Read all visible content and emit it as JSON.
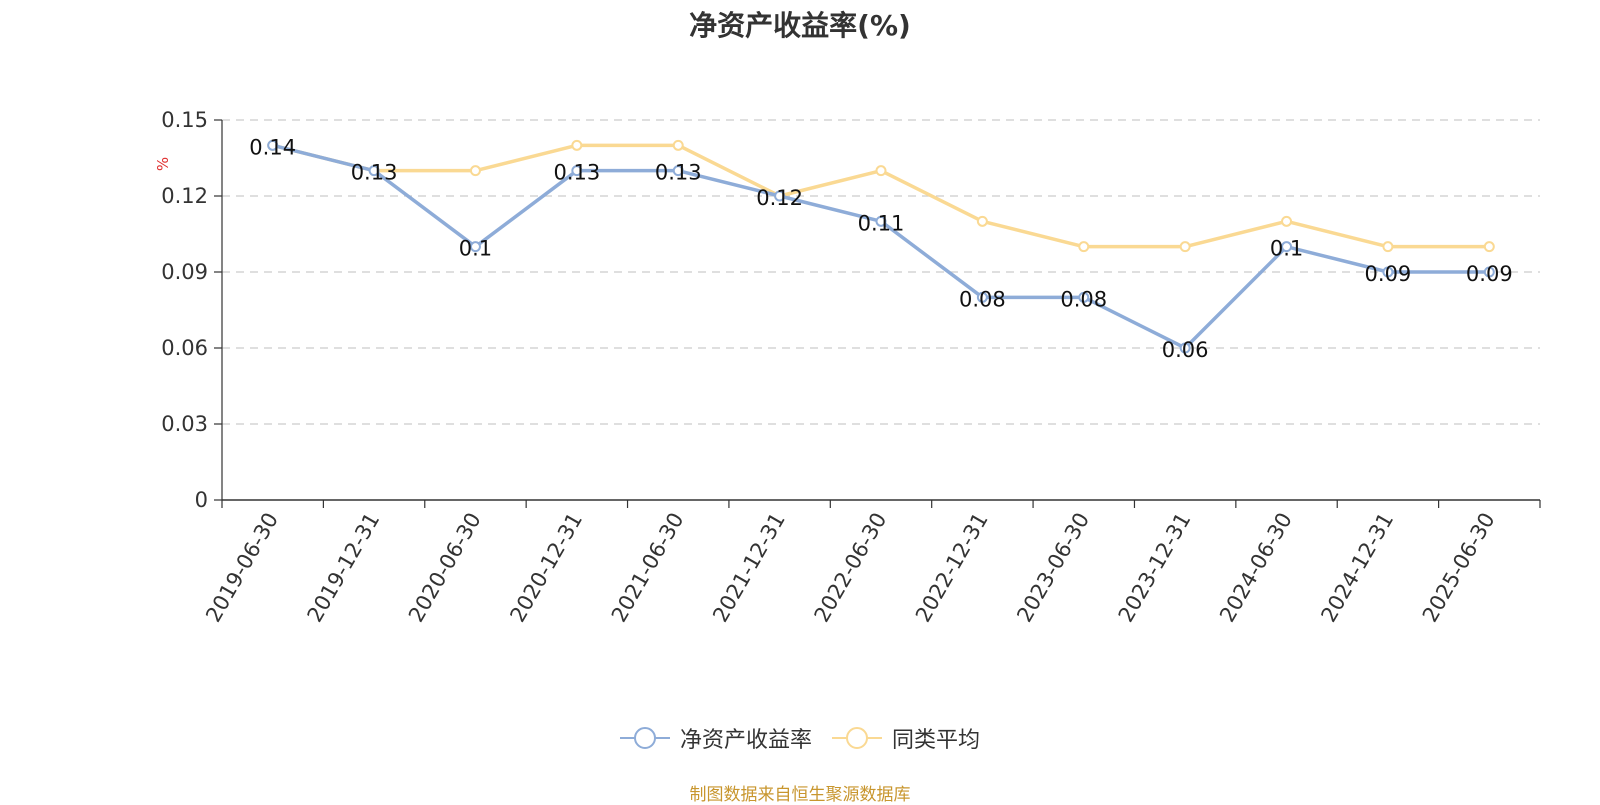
{
  "title": "净资产收益率(%)",
  "source_note": "制图数据来自恒生聚源数据库",
  "chart_data": {
    "type": "line",
    "title": "净资产收益率(%)",
    "ylabel": "%",
    "xlabel": "",
    "ylim": [
      0,
      0.15
    ],
    "yticks": [
      0,
      0.03,
      0.06,
      0.09,
      0.12,
      0.15
    ],
    "ytick_labels": [
      "0",
      "0.03",
      "0.06",
      "0.09",
      "0.12",
      "0.15"
    ],
    "grid": true,
    "legend_position": "bottom-center",
    "categories": [
      "2019-06-30",
      "2019-12-31",
      "2020-06-30",
      "2020-12-31",
      "2021-06-30",
      "2021-12-31",
      "2022-06-30",
      "2022-12-31",
      "2023-06-30",
      "2023-12-31",
      "2024-06-30",
      "2024-12-31",
      "2025-06-30"
    ],
    "series": [
      {
        "name": "净资产收益率",
        "color": "#8eacd8",
        "values": [
          0.14,
          0.13,
          0.1,
          0.13,
          0.13,
          0.12,
          0.11,
          0.08,
          0.08,
          0.06,
          0.1,
          0.09,
          0.09
        ],
        "labels": [
          "0.14",
          "0.13",
          "0.1",
          "0.13",
          "0.13",
          "0.12",
          "0.11",
          "0.08",
          "0.08",
          "0.06",
          "0.1",
          "0.09",
          "0.09"
        ]
      },
      {
        "name": "同类平均",
        "color": "#fad993",
        "values": [
          0.14,
          0.13,
          0.13,
          0.14,
          0.14,
          0.12,
          0.13,
          0.11,
          0.1,
          0.1,
          0.11,
          0.1,
          0.1
        ]
      }
    ]
  }
}
